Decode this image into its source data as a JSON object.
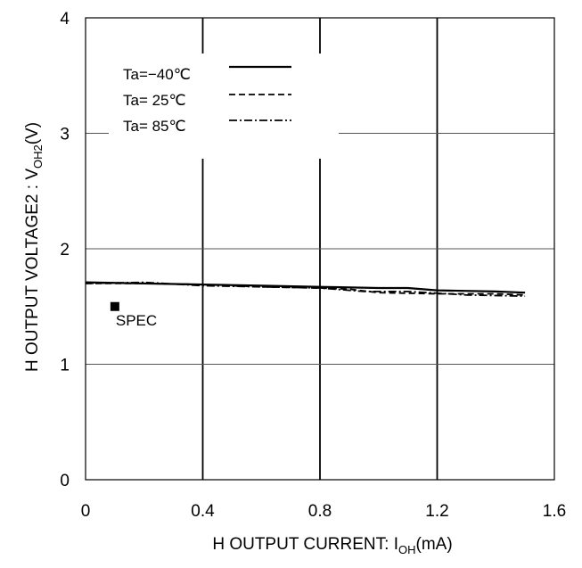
{
  "chart_data": {
    "type": "line",
    "xlabel": "H OUTPUT CURRENT: I",
    "xlabel_sub": "OH",
    "xlabel_tail": "(mA)",
    "ylabel": "H OUTPUT VOLTAGE2 : V",
    "ylabel_sub": "OH2",
    "ylabel_tail": "(V)",
    "xlim": [
      0,
      1.6
    ],
    "ylim": [
      0,
      4
    ],
    "x_ticks": [
      "0",
      "0.4",
      "0.8",
      "1.2",
      "1.6"
    ],
    "y_ticks": [
      "0",
      "1",
      "2",
      "3",
      "4"
    ],
    "grid": true,
    "legend_position": "top-left",
    "series": [
      {
        "name": "Ta=−40℃",
        "style": "solid",
        "x": [
          0,
          0.2,
          0.4,
          0.6,
          0.8,
          1.0,
          1.1,
          1.2,
          1.4,
          1.5
        ],
        "y": [
          1.71,
          1.7,
          1.69,
          1.68,
          1.67,
          1.66,
          1.66,
          1.64,
          1.63,
          1.62
        ]
      },
      {
        "name": "Ta= 25℃",
        "style": "dashed",
        "x": [
          0,
          0.2,
          0.4,
          0.6,
          0.8,
          0.9,
          1.0,
          1.2,
          1.4,
          1.5
        ],
        "y": [
          1.7,
          1.7,
          1.69,
          1.67,
          1.66,
          1.65,
          1.62,
          1.61,
          1.61,
          1.6
        ]
      },
      {
        "name": "Ta= 85℃",
        "style": "dashdot",
        "x": [
          0,
          0.2,
          0.4,
          0.6,
          0.8,
          0.95,
          1.1,
          1.3,
          1.5
        ],
        "y": [
          1.7,
          1.71,
          1.68,
          1.67,
          1.66,
          1.63,
          1.63,
          1.6,
          1.59
        ]
      }
    ],
    "annotations": [
      {
        "text": "SPEC",
        "marker": "square",
        "x": 0.1,
        "y": 1.5
      }
    ]
  }
}
